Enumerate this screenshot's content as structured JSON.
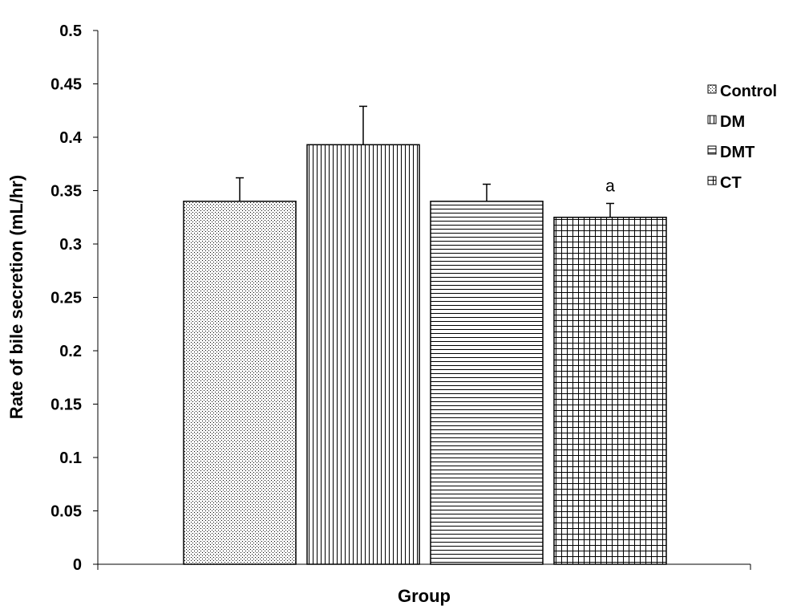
{
  "chart_data": {
    "type": "bar",
    "title": "",
    "xlabel": "Group",
    "ylabel": "Rate of bile secretion (mL/hr)",
    "ylim": [
      0,
      0.5
    ],
    "yticks": [
      "0",
      "0.05",
      "0.1",
      "0.15",
      "0.2",
      "0.25",
      "0.3",
      "0.35",
      "0.4",
      "0.45",
      "0.5"
    ],
    "grid": false,
    "legend_position": "right",
    "series": [
      {
        "name": "Control",
        "value": 0.34,
        "error": 0.022,
        "pattern": "dots",
        "annotation": ""
      },
      {
        "name": "DM",
        "value": 0.393,
        "error": 0.036,
        "pattern": "vertical-lines",
        "annotation": ""
      },
      {
        "name": "DMT",
        "value": 0.34,
        "error": 0.016,
        "pattern": "horizontal-lines",
        "annotation": ""
      },
      {
        "name": "CT",
        "value": 0.325,
        "error": 0.013,
        "pattern": "grid",
        "annotation": "a"
      }
    ]
  }
}
